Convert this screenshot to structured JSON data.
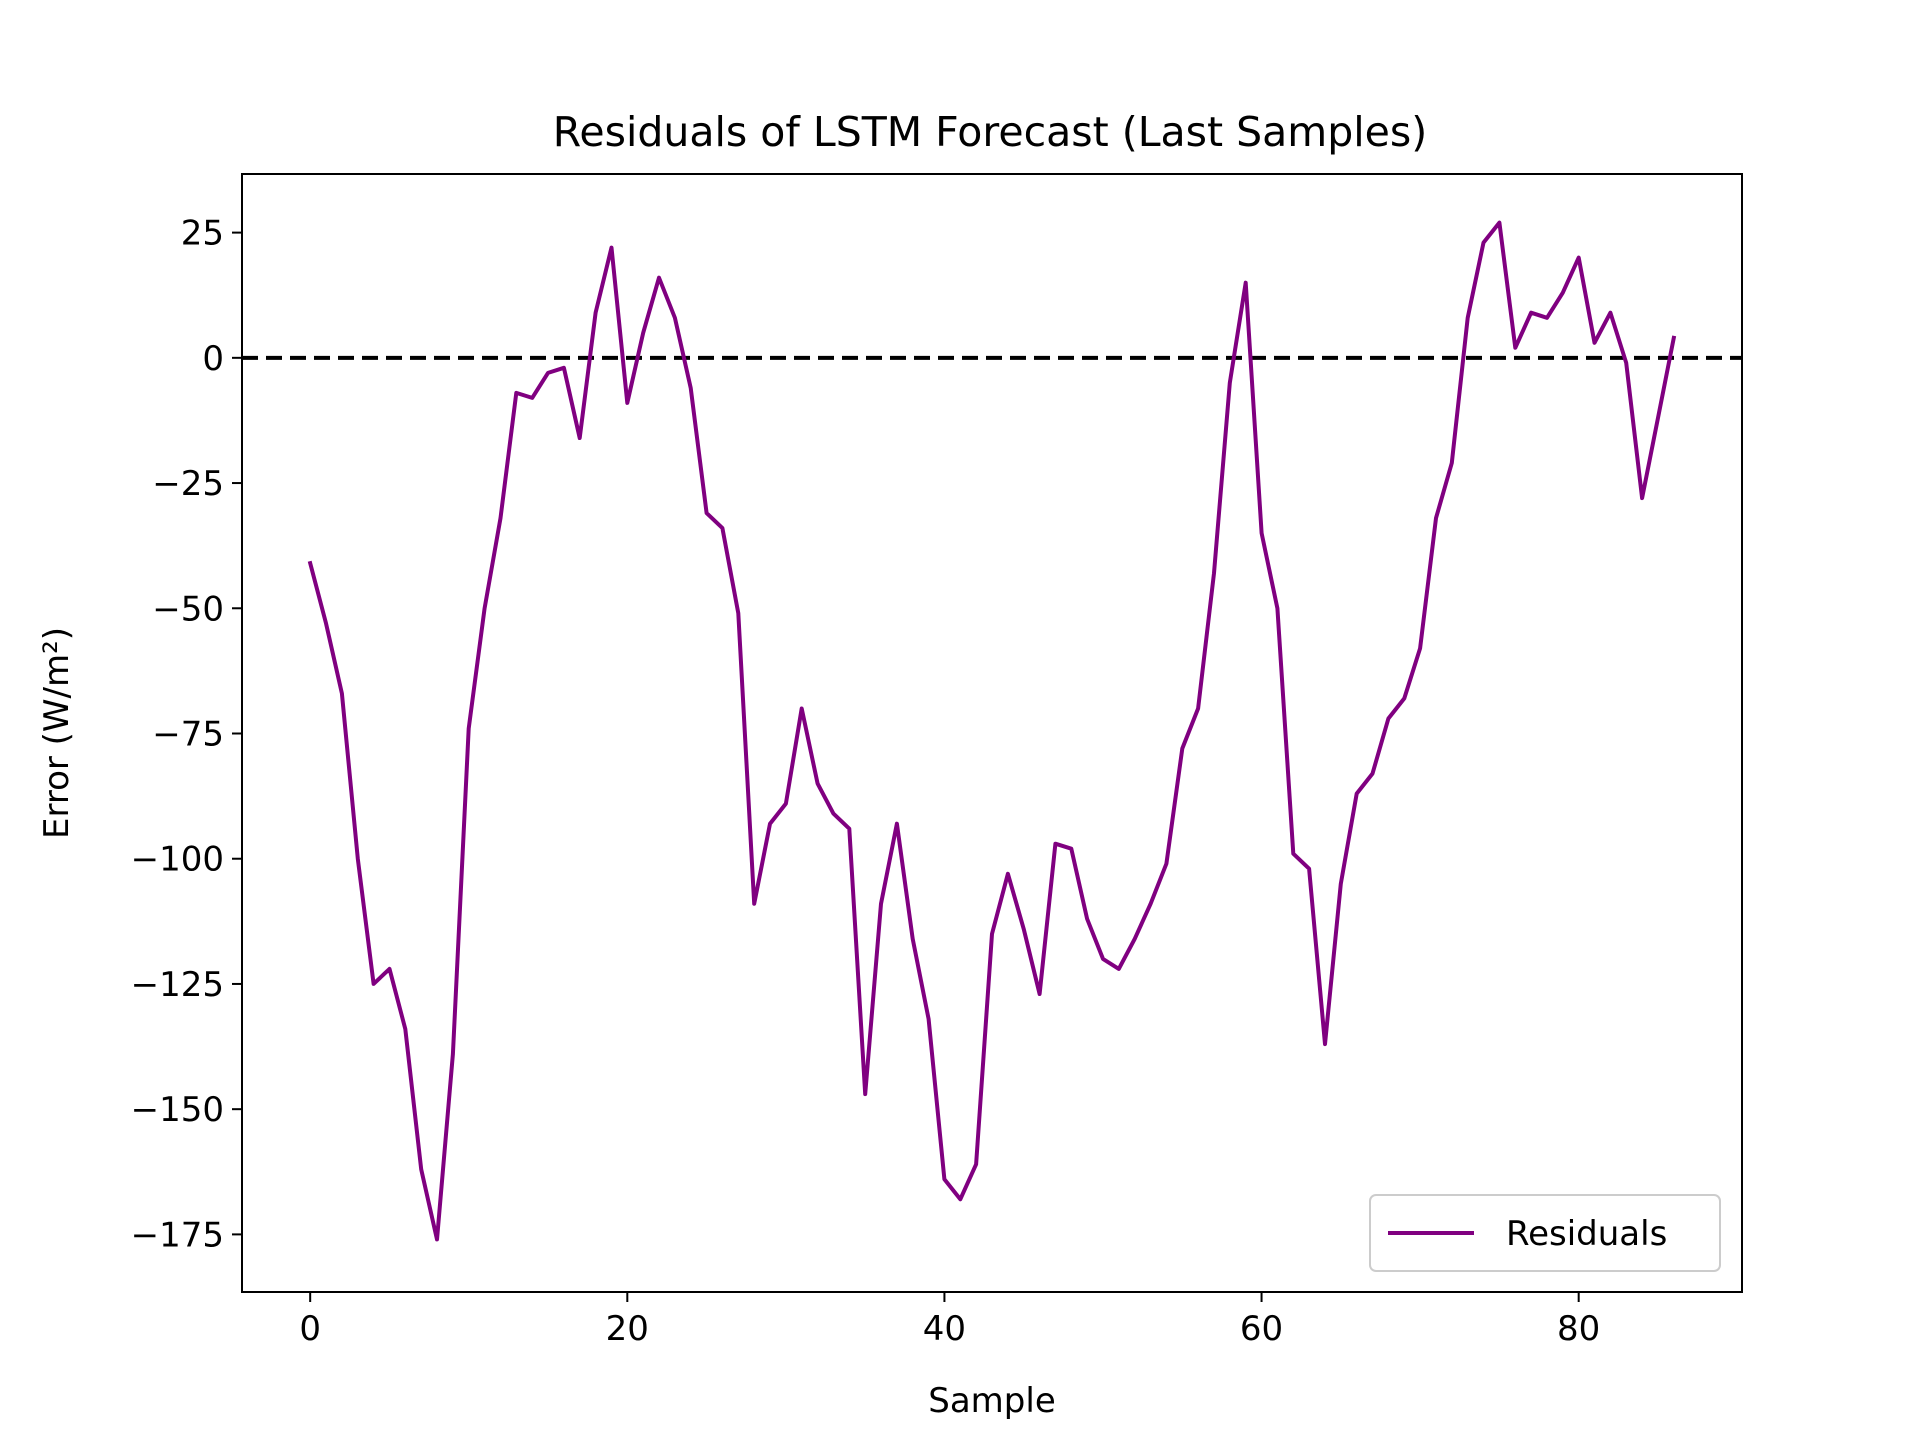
{
  "chart_data": {
    "type": "line",
    "title": "Residuals of LSTM Forecast (Last Samples)",
    "xlabel": "Sample",
    "ylabel": "Error (W/m²)",
    "xlim": [
      -4.3,
      90.3
    ],
    "ylim": [
      -186.5,
      36.7
    ],
    "xticks": [
      0,
      20,
      40,
      60,
      80
    ],
    "yticks": [
      25,
      0,
      -25,
      -50,
      -75,
      -100,
      -125,
      -150,
      -175
    ],
    "xtick_labels": [
      "0",
      "20",
      "40",
      "60",
      "80"
    ],
    "ytick_labels": [
      "25",
      "0",
      "−25",
      "−50",
      "−75",
      "−100",
      "−125",
      "−150",
      "−175"
    ],
    "grid": false,
    "legend_position": "lower-right",
    "reference_line": {
      "y": 0,
      "style": "dashed",
      "color": "#000000"
    },
    "series": [
      {
        "name": "Residuals",
        "color": "#800080",
        "x": [
          0,
          1,
          2,
          3,
          4,
          5,
          6,
          7,
          8,
          9,
          10,
          11,
          12,
          13,
          14,
          15,
          16,
          17,
          18,
          19,
          20,
          21,
          22,
          23,
          24,
          25,
          26,
          27,
          28,
          29,
          30,
          31,
          32,
          33,
          34,
          35,
          36,
          37,
          38,
          39,
          40,
          41,
          42,
          43,
          44,
          45,
          46,
          47,
          48,
          49,
          50,
          51,
          52,
          53,
          54,
          55,
          56,
          57,
          58,
          59,
          60,
          61,
          62,
          63,
          64,
          65,
          66,
          67,
          68,
          69,
          70,
          71,
          72,
          73,
          74,
          75,
          76,
          77,
          78,
          79,
          80,
          81,
          82,
          83,
          84,
          85,
          86
        ],
        "values": [
          -41,
          -53,
          -67,
          -100,
          -125,
          -122,
          -134,
          -162,
          -176,
          -139,
          -74,
          -50,
          -32,
          -7,
          -8,
          -3,
          -2,
          -16,
          9,
          22,
          -9,
          5,
          16,
          8,
          -6,
          -31,
          -34,
          -51,
          -109,
          -93,
          -89,
          -70,
          -85,
          -91,
          -94,
          -147,
          -109,
          -93,
          -116,
          -132,
          -164,
          -168,
          -161,
          -115,
          -103,
          -114,
          -127,
          -97,
          -98,
          -112,
          -120,
          -122,
          -116,
          -109,
          -101,
          -78,
          -70,
          -43,
          -5,
          15,
          -35,
          -50,
          -99,
          -102,
          -137,
          -105,
          -87,
          -83,
          -72,
          -68,
          -58,
          -32,
          -21,
          8,
          23,
          27,
          2,
          9,
          8,
          13,
          20,
          3,
          9,
          -1,
          -28,
          -12,
          4
        ]
      }
    ]
  }
}
